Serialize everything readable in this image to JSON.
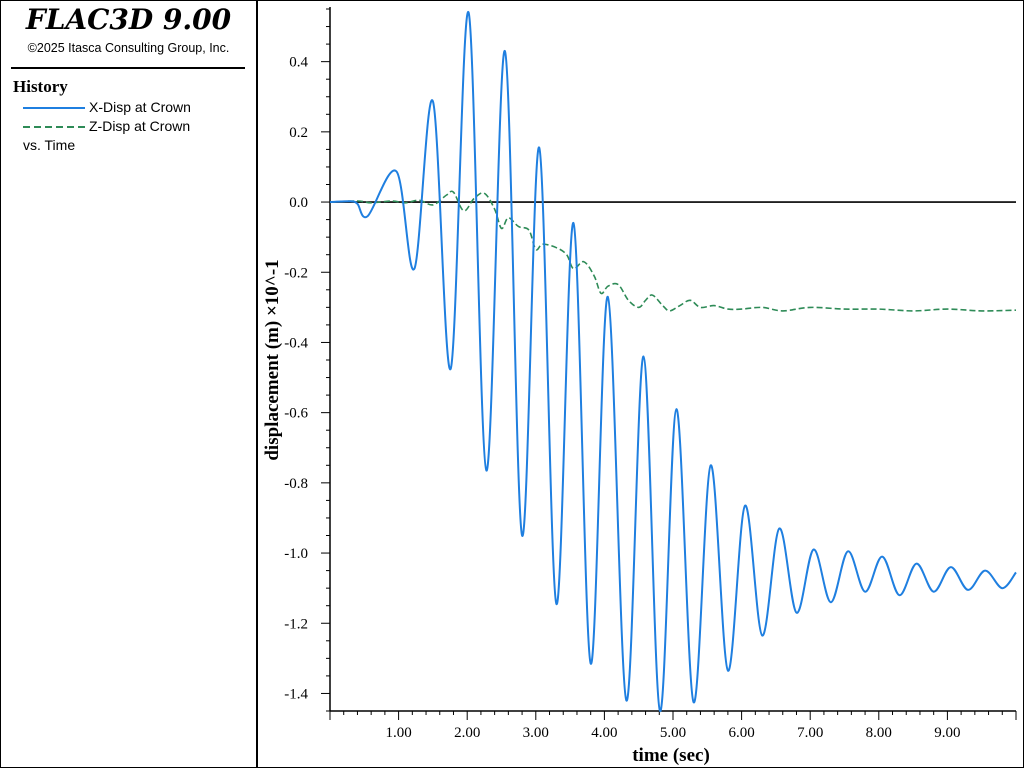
{
  "app": {
    "title": "FLAC3D 9.00",
    "copyright": "©2025 Itasca Consulting Group, Inc."
  },
  "legend": {
    "heading": "History",
    "items": [
      {
        "label": "X-Disp at Crown",
        "color": "#1f7fe0",
        "style": "solid"
      },
      {
        "label": "Z-Disp at Crown",
        "color": "#2e8b57",
        "style": "dashed"
      }
    ],
    "vs_label": "vs. Time"
  },
  "chart_data": {
    "type": "line",
    "xlabel": "time (sec)",
    "ylabel": "displacement (m) ×10^-1",
    "xlim": [
      0,
      10
    ],
    "ylim": [
      -1.45,
      0.55
    ],
    "x_ticks": [
      "1.00",
      "2.00",
      "3.00",
      "4.00",
      "5.00",
      "6.00",
      "7.00",
      "8.00",
      "9.00"
    ],
    "y_ticks": [
      "0.4",
      "0.2",
      "0.0",
      "-0.2",
      "-0.4",
      "-0.6",
      "-0.8",
      "-1.0",
      "-1.2",
      "-1.4"
    ],
    "zero_line": true,
    "series": [
      {
        "name": "X-Disp at Crown",
        "color": "#1f7fe0",
        "style": "solid",
        "points": [
          [
            0.0,
            0.0
          ],
          [
            0.3,
            0.002
          ],
          [
            0.4,
            -0.005
          ],
          [
            0.55,
            -0.04
          ],
          [
            0.97,
            0.087
          ],
          [
            1.23,
            -0.19
          ],
          [
            1.5,
            0.287
          ],
          [
            1.76,
            -0.475
          ],
          [
            2.02,
            0.54
          ],
          [
            2.28,
            -0.765
          ],
          [
            2.55,
            0.43
          ],
          [
            2.8,
            -0.95
          ],
          [
            3.05,
            0.155
          ],
          [
            3.3,
            -1.145
          ],
          [
            3.55,
            -0.06
          ],
          [
            3.8,
            -1.315
          ],
          [
            4.05,
            -0.27
          ],
          [
            4.32,
            -1.42
          ],
          [
            4.57,
            -0.44
          ],
          [
            4.81,
            -1.45
          ],
          [
            5.05,
            -0.59
          ],
          [
            5.3,
            -1.425
          ],
          [
            5.55,
            -0.75
          ],
          [
            5.8,
            -1.335
          ],
          [
            6.05,
            -0.865
          ],
          [
            6.3,
            -1.235
          ],
          [
            6.55,
            -0.93
          ],
          [
            6.8,
            -1.17
          ],
          [
            7.05,
            -0.99
          ],
          [
            7.3,
            -1.14
          ],
          [
            7.55,
            -0.995
          ],
          [
            7.8,
            -1.11
          ],
          [
            8.05,
            -1.01
          ],
          [
            8.3,
            -1.12
          ],
          [
            8.55,
            -1.03
          ],
          [
            8.8,
            -1.11
          ],
          [
            9.05,
            -1.04
          ],
          [
            9.3,
            -1.105
          ],
          [
            9.55,
            -1.05
          ],
          [
            9.8,
            -1.1
          ],
          [
            10.0,
            -1.055
          ]
        ]
      },
      {
        "name": "Z-Disp at Crown",
        "color": "#2e8b57",
        "style": "dashed",
        "points": [
          [
            0.0,
            0.0
          ],
          [
            0.4,
            0.003
          ],
          [
            0.6,
            -0.002
          ],
          [
            0.9,
            0.003
          ],
          [
            1.1,
            -0.002
          ],
          [
            1.3,
            0.005
          ],
          [
            1.5,
            -0.008
          ],
          [
            1.7,
            0.02
          ],
          [
            1.8,
            0.028
          ],
          [
            1.95,
            -0.025
          ],
          [
            2.1,
            0.01
          ],
          [
            2.25,
            0.025
          ],
          [
            2.4,
            -0.02
          ],
          [
            2.5,
            -0.075
          ],
          [
            2.6,
            -0.045
          ],
          [
            2.75,
            -0.07
          ],
          [
            2.9,
            -0.08
          ],
          [
            3.0,
            -0.135
          ],
          [
            3.1,
            -0.12
          ],
          [
            3.3,
            -0.13
          ],
          [
            3.45,
            -0.15
          ],
          [
            3.55,
            -0.19
          ],
          [
            3.7,
            -0.17
          ],
          [
            3.85,
            -0.21
          ],
          [
            3.95,
            -0.26
          ],
          [
            4.05,
            -0.24
          ],
          [
            4.2,
            -0.235
          ],
          [
            4.35,
            -0.28
          ],
          [
            4.5,
            -0.3
          ],
          [
            4.6,
            -0.28
          ],
          [
            4.7,
            -0.265
          ],
          [
            4.85,
            -0.295
          ],
          [
            4.95,
            -0.31
          ],
          [
            5.1,
            -0.295
          ],
          [
            5.25,
            -0.28
          ],
          [
            5.4,
            -0.3
          ],
          [
            5.6,
            -0.295
          ],
          [
            5.8,
            -0.305
          ],
          [
            6.0,
            -0.305
          ],
          [
            6.3,
            -0.3
          ],
          [
            6.6,
            -0.31
          ],
          [
            7.0,
            -0.3
          ],
          [
            7.5,
            -0.305
          ],
          [
            8.0,
            -0.305
          ],
          [
            8.5,
            -0.31
          ],
          [
            9.0,
            -0.305
          ],
          [
            9.5,
            -0.31
          ],
          [
            10.0,
            -0.308
          ]
        ]
      }
    ]
  }
}
